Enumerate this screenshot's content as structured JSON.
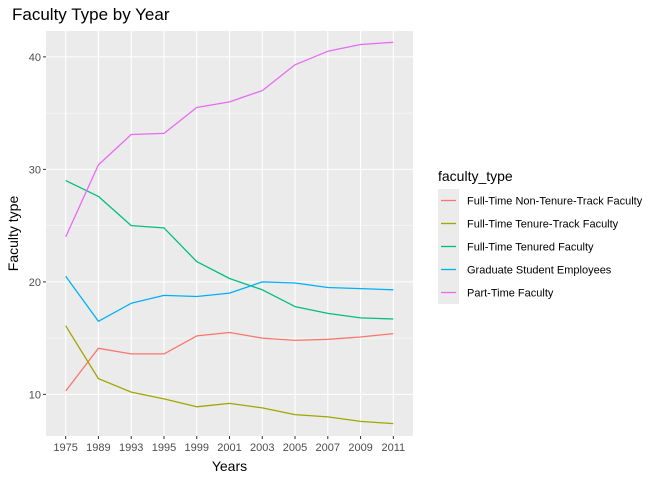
{
  "chart_data": {
    "type": "line",
    "title": "Faculty Type by Year",
    "xlabel": "Years",
    "ylabel": "Faculty type",
    "categories": [
      "1975",
      "1989",
      "1993",
      "1995",
      "1999",
      "2001",
      "2003",
      "2005",
      "2007",
      "2009",
      "2011"
    ],
    "ylim": [
      6.3,
      42.3
    ],
    "yticks": [
      10,
      20,
      30,
      40
    ],
    "grid": true,
    "legend": {
      "title": "faculty_type",
      "position": "right"
    },
    "series": [
      {
        "name": "Full-Time Non-Tenure-Track Faculty",
        "color": "#F8766D",
        "values": [
          10.3,
          14.1,
          13.6,
          13.6,
          15.2,
          15.5,
          15.0,
          14.8,
          14.9,
          15.1,
          15.4
        ]
      },
      {
        "name": "Full-Time Tenure-Track Faculty",
        "color": "#A3A500",
        "values": [
          16.1,
          11.4,
          10.2,
          9.6,
          8.9,
          9.2,
          8.8,
          8.2,
          8.0,
          7.6,
          7.4
        ]
      },
      {
        "name": "Full-Time Tenured Faculty",
        "color": "#00BF7D",
        "values": [
          29.0,
          27.6,
          25.0,
          24.8,
          21.8,
          20.3,
          19.3,
          17.8,
          17.2,
          16.8,
          16.7
        ]
      },
      {
        "name": "Graduate Student Employees",
        "color": "#00B0F6",
        "values": [
          20.5,
          16.5,
          18.1,
          18.8,
          18.7,
          19.0,
          20.0,
          19.9,
          19.5,
          19.4,
          19.3
        ]
      },
      {
        "name": "Part-Time Faculty",
        "color": "#E76BF3",
        "values": [
          24.0,
          30.4,
          33.1,
          33.2,
          35.5,
          36.0,
          37.0,
          39.3,
          40.5,
          41.1,
          41.3
        ]
      }
    ]
  }
}
